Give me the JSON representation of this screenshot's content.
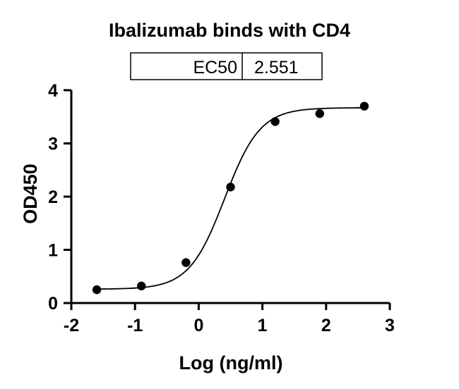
{
  "chart_data": {
    "type": "scatter",
    "title": "Ibalizumab binds with CD4",
    "xlabel": "Log (ng/ml)",
    "ylabel": "OD450",
    "xlim": [
      -2,
      3
    ],
    "ylim": [
      0,
      4
    ],
    "xticks": [
      "-2",
      "-1",
      "0",
      "1",
      "2",
      "3"
    ],
    "yticks": [
      "0",
      "1",
      "2",
      "3",
      "4"
    ],
    "grid": false,
    "legend": "none",
    "series": [
      {
        "type": "scatter",
        "color": "#000000",
        "x": [
          -1.6,
          -0.9,
          -0.2,
          0.5,
          1.2,
          1.9,
          2.6
        ],
        "y": [
          0.25,
          0.32,
          0.76,
          2.18,
          3.41,
          3.56,
          3.7
        ]
      }
    ],
    "fit": {
      "type": "4PL sigmoid curve",
      "bottom": 0.26,
      "top": 3.67,
      "ec50_log": 0.407,
      "hill": 1.56,
      "x_range": [
        -1.6,
        2.6
      ],
      "color": "#000000"
    },
    "results_table": {
      "label": "EC50",
      "value": "2.551"
    }
  }
}
